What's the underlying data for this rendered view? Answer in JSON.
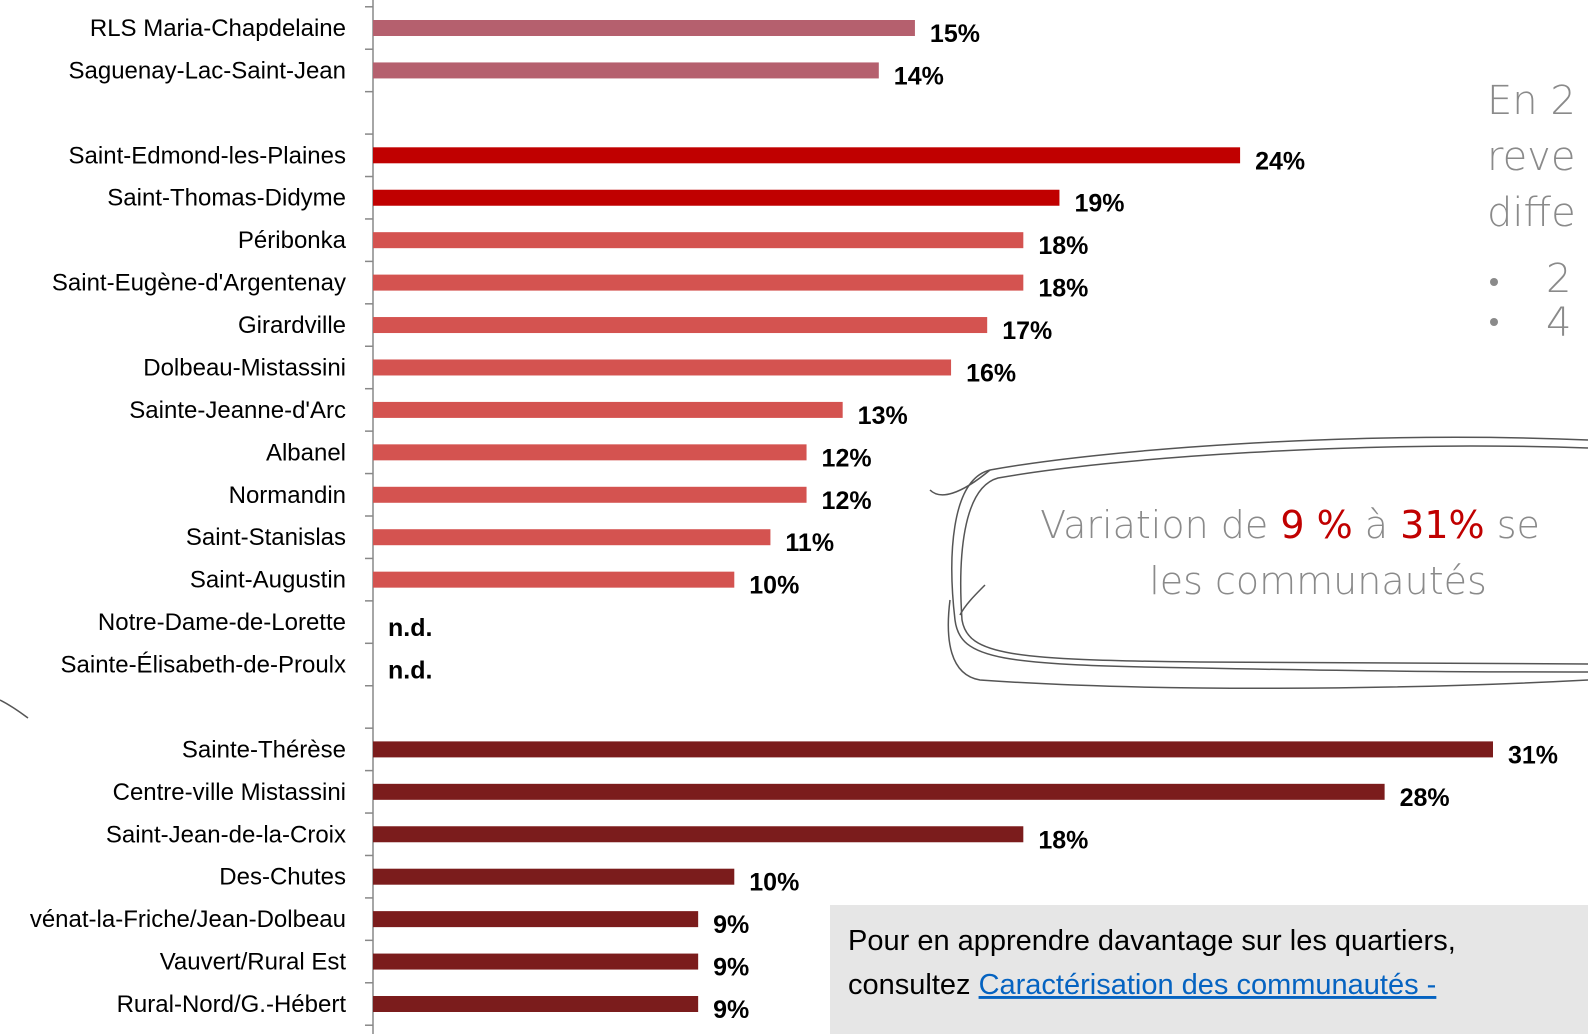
{
  "chart_data": {
    "type": "bar",
    "orientation": "horizontal",
    "categories": [
      "RLS Maria-Chapdelaine",
      "Saguenay-Lac-Saint-Jean",
      null,
      "Saint-Edmond-les-Plaines",
      "Saint-Thomas-Didyme",
      "Péribonka",
      "Saint-Eugène-d'Argentenay",
      "Girardville",
      "Dolbeau-Mistassini",
      "Sainte-Jeanne-d'Arc",
      "Albanel",
      "Normandin",
      "Saint-Stanislas",
      "Saint-Augustin",
      "Notre-Dame-de-Lorette",
      "Sainte-Élisabeth-de-Proulx",
      null,
      "Sainte-Thérèse",
      "Centre-ville Mistassini",
      "Saint-Jean-de-la-Croix",
      "Des-Chutes",
      "vénat-la-Friche/Jean-Dolbeau",
      "Vauvert/Rural Est",
      "Rural-Nord/G.-Hébert"
    ],
    "values": [
      15,
      14,
      null,
      24,
      19,
      18,
      18,
      17,
      16,
      13,
      12,
      12,
      11,
      10,
      null,
      null,
      null,
      31,
      28,
      18,
      10,
      9,
      9,
      9
    ],
    "value_labels": [
      "15%",
      "14%",
      null,
      "24%",
      "19%",
      "18%",
      "18%",
      "17%",
      "16%",
      "13%",
      "12%",
      "12%",
      "11%",
      "10%",
      "n.d.",
      "n.d.",
      null,
      "31%",
      "28%",
      "18%",
      "10%",
      "9%",
      "9%",
      "9%"
    ],
    "colors": [
      "#b5606e",
      "#b5606e",
      null,
      "#c00000",
      "#c00000",
      "#d45350",
      "#d45350",
      "#d45350",
      "#d45350",
      "#d45350",
      "#d45350",
      "#d45350",
      "#d45350",
      "#d45350",
      null,
      null,
      null,
      "#7b1c1c",
      "#7b1c1c",
      "#7b1c1c",
      "#7b1c1c",
      "#7b1c1c",
      "#7b1c1c",
      "#7b1c1c"
    ],
    "xlim": [
      0,
      31
    ]
  },
  "side_note": {
    "lines": [
      "En 2",
      "reve",
      "diffe"
    ],
    "bullets": [
      "2",
      "4"
    ]
  },
  "callout": {
    "line1": [
      "Variation de ",
      "9 %",
      " à ",
      "31%",
      " se"
    ],
    "line2": "les communautés"
  },
  "info_box": {
    "text": "Pour en apprendre davantage sur les quartiers,",
    "prefix": "consultez ",
    "link": "Caractérisation des communautés -"
  }
}
